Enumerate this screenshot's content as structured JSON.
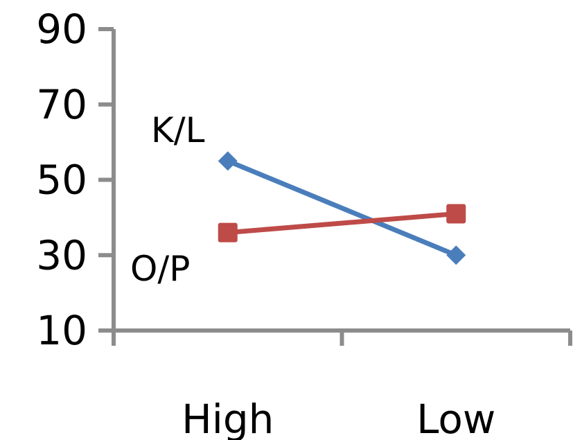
{
  "chart_data": {
    "type": "line",
    "categories": [
      "High",
      "Low"
    ],
    "series": [
      {
        "name": "K/L",
        "values": [
          55,
          30
        ],
        "color": "#4a7ebb",
        "marker": "diamond"
      },
      {
        "name": "O/P",
        "values": [
          36,
          41
        ],
        "color": "#be4b48",
        "marker": "square"
      }
    ],
    "ylim": [
      10,
      90
    ],
    "y_ticks": [
      "10",
      "30",
      "50",
      "70",
      "90"
    ],
    "grid": false,
    "legend": "inline labels"
  }
}
